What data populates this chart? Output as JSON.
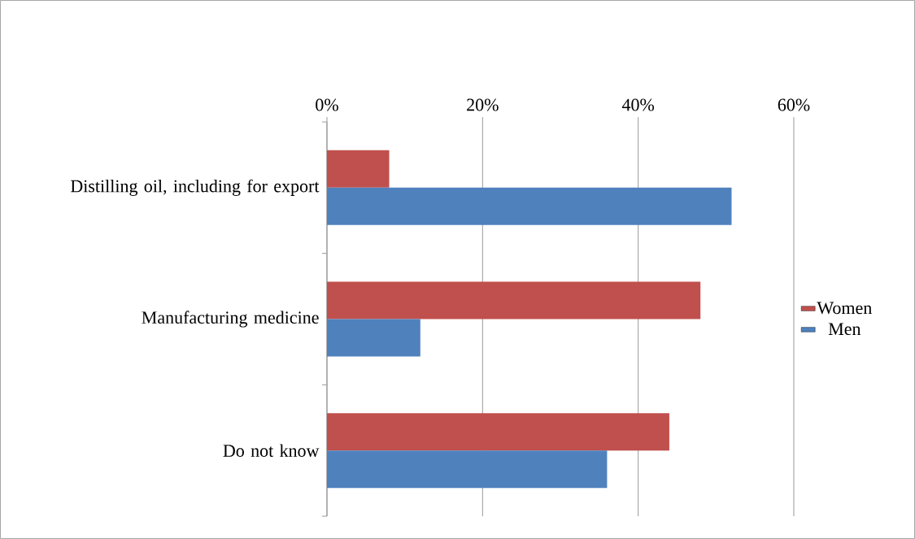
{
  "chart_data": {
    "type": "bar",
    "orientation": "horizontal",
    "categories": [
      "Distilling oil, including for export",
      "Manufacturing medicine",
      "Do not know"
    ],
    "series": [
      {
        "name": "Women",
        "color": "#c0504d",
        "values": [
          8,
          48,
          44
        ]
      },
      {
        "name": "Men",
        "color": "#4f81bd",
        "values": [
          52,
          12,
          36
        ]
      }
    ],
    "xlim": [
      0,
      60
    ],
    "xticks": [
      {
        "value": 0,
        "label": "0%"
      },
      {
        "value": 20,
        "label": "20%"
      },
      {
        "value": 40,
        "label": "40%"
      },
      {
        "value": 60,
        "label": "60%"
      }
    ],
    "grid": "x",
    "legend": "right"
  }
}
